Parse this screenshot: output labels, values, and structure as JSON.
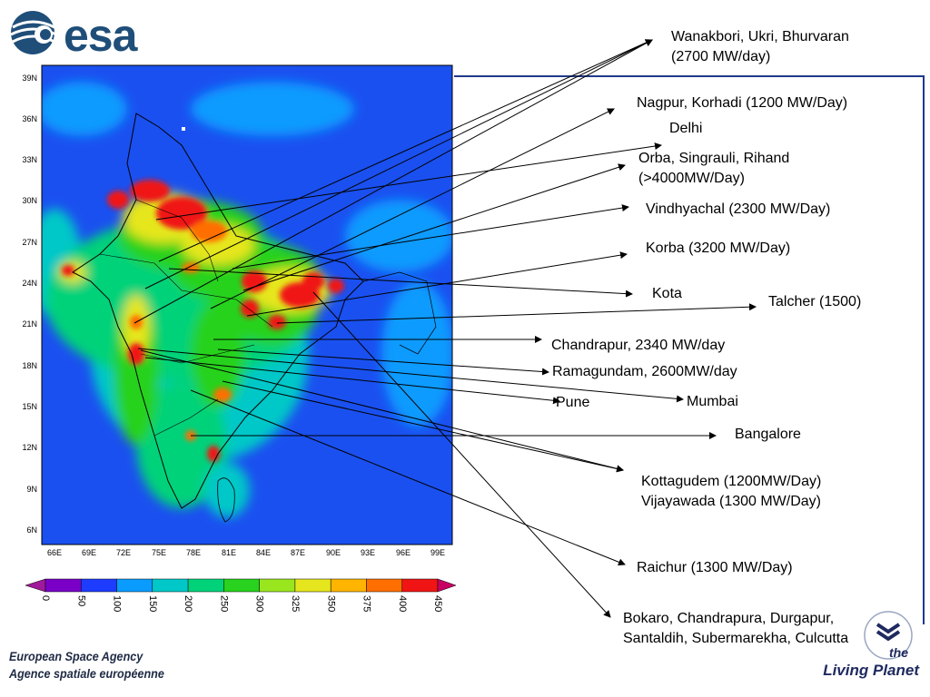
{
  "logo": {
    "text": "esa"
  },
  "map": {
    "lat_ticks": [
      "39N",
      "36N",
      "33N",
      "30N",
      "27N",
      "24N",
      "21N",
      "18N",
      "15N",
      "12N",
      "9N",
      "6N"
    ],
    "lon_ticks": [
      "66E",
      "69E",
      "72E",
      "75E",
      "78E",
      "81E",
      "84E",
      "87E",
      "90E",
      "93E",
      "96E",
      "99E"
    ]
  },
  "colorbar": {
    "ticks": [
      "0",
      "50",
      "100",
      "150",
      "200",
      "250",
      "300",
      "325",
      "350",
      "375",
      "400",
      "450"
    ],
    "colors": [
      "#7a00c8",
      "#1e3cff",
      "#0a9bff",
      "#00c8c8",
      "#00d27a",
      "#28d21e",
      "#9ae61e",
      "#e6e61e",
      "#ffb400",
      "#ff6e00",
      "#f01414",
      "#c80064"
    ]
  },
  "labels": {
    "wanakbori": "Wanakbori, Ukri, Bhurvaran\n(2700 MW/day)",
    "nagpur": "Nagpur, Korhadi (1200 MW/Day)",
    "delhi": "Delhi",
    "orba": "Orba, Singrauli, Rihand\n(>4000MW/Day)",
    "vindhyachal": "Vindhyachal (2300 MW/Day)",
    "korba": "Korba (3200 MW/Day)",
    "kota": "Kota",
    "talcher": "Talcher (1500)",
    "chandrapur": "Chandrapur, 2340 MW/day",
    "ramagundam": "Ramagundam, 2600MW/day",
    "mumbai": "Mumbai",
    "pune": "Pune",
    "bangalore": "Bangalore",
    "kottagudem": "Kottagudem (1200MW/Day)\nVijayawada (1300 MW/Day)",
    "raichur": "Raichur (1300 MW/Day)",
    "bokaro": "Bokaro, Chandrapura, Durgapur,\nSantaldih, Subermarekha, Culcutta"
  },
  "footer": {
    "agency_en": "European Space Agency",
    "agency_fr": "Agence spatiale européenne",
    "tagline_the": "the",
    "tagline": "Living Planet"
  }
}
